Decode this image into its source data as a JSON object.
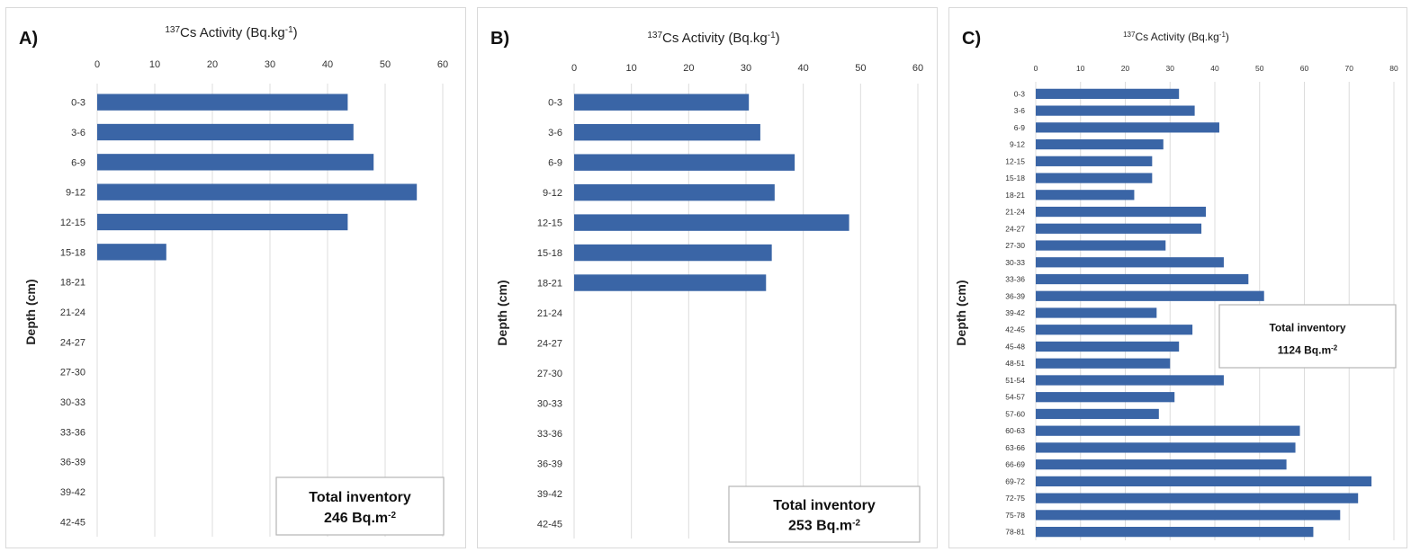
{
  "chart_data": [
    {
      "type": "bar",
      "panel_label": "A)",
      "title_iso": "137",
      "title_rest": "Cs Activity (Bq.kg",
      "title_exp": "-1",
      "title_close": ")",
      "ylabel": "Depth (cm)",
      "xlim": [
        0,
        60
      ],
      "xticks": [
        0,
        10,
        20,
        30,
        40,
        50,
        60
      ],
      "categories": [
        "0-3",
        "3-6",
        "6-9",
        "9-12",
        "12-15",
        "15-18",
        "18-21",
        "21-24",
        "24-27",
        "27-30",
        "30-33",
        "33-36",
        "36-39",
        "39-42",
        "42-45"
      ],
      "values": [
        43.5,
        44.5,
        48,
        55.5,
        43.5,
        12,
        null,
        null,
        null,
        null,
        null,
        null,
        null,
        null,
        null
      ],
      "grid": true,
      "inventory_line1": "Total inventory",
      "inventory_value": "246 Bq.m",
      "inventory_exp": "-2"
    },
    {
      "type": "bar",
      "panel_label": "B)",
      "title_iso": "137",
      "title_rest": "Cs Activity (Bq.kg",
      "title_exp": "-1",
      "title_close": ")",
      "ylabel": "Depth (cm)",
      "xlim": [
        0,
        60
      ],
      "xticks": [
        0,
        10,
        20,
        30,
        40,
        50,
        60
      ],
      "categories": [
        "0-3",
        "3-6",
        "6-9",
        "9-12",
        "12-15",
        "15-18",
        "18-21",
        "21-24",
        "24-27",
        "27-30",
        "30-33",
        "33-36",
        "36-39",
        "39-42",
        "42-45"
      ],
      "values": [
        30.5,
        32.5,
        38.5,
        35,
        48,
        34.5,
        33.5,
        null,
        null,
        null,
        null,
        null,
        null,
        null,
        null
      ],
      "grid": true,
      "inventory_line1": "Total inventory",
      "inventory_value": "253 Bq.m",
      "inventory_exp": "-2"
    },
    {
      "type": "bar",
      "panel_label": "C)",
      "title_iso": "137",
      "title_rest": "Cs Activity (Bq.kg",
      "title_exp": "-1",
      "title_close": ")",
      "ylabel": "Depth (cm)",
      "xlim": [
        0,
        80
      ],
      "xticks": [
        0,
        10,
        20,
        30,
        40,
        50,
        60,
        70,
        80
      ],
      "categories": [
        "0-3",
        "3-6",
        "6-9",
        "9-12",
        "12-15",
        "15-18",
        "18-21",
        "21-24",
        "24-27",
        "27-30",
        "30-33",
        "33-36",
        "36-39",
        "39-42",
        "42-45",
        "45-48",
        "48-51",
        "51-54",
        "54-57",
        "57-60",
        "60-63",
        "63-66",
        "66-69",
        "69-72",
        "72-75",
        "75-78",
        "78-81"
      ],
      "values": [
        32,
        35.5,
        41,
        28.5,
        26,
        26,
        22,
        38,
        37,
        29,
        42,
        47.5,
        51,
        27,
        35,
        32,
        30,
        42,
        31,
        27.5,
        59,
        58,
        56,
        75,
        72,
        68,
        62
      ],
      "grid": true,
      "inventory_line1": "Total inventory",
      "inventory_value": "1124 Bq.m",
      "inventory_exp": "-2"
    }
  ]
}
